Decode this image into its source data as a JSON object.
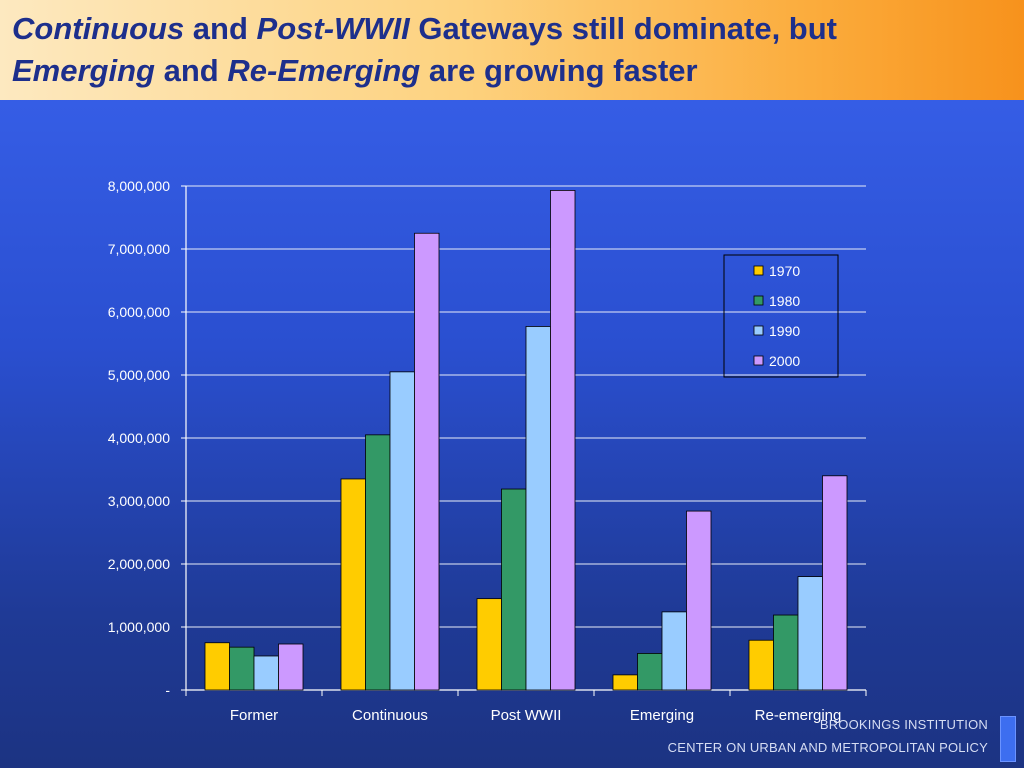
{
  "title": {
    "line1": [
      {
        "text": "Continuous",
        "italic": true
      },
      {
        "text": " and ",
        "italic": false
      },
      {
        "text": "Post-WWII",
        "italic": true
      },
      {
        "text": " Gateways still dominate, but",
        "italic": false
      }
    ],
    "line2": [
      {
        "text": "Emerging",
        "italic": true
      },
      {
        "text": " and ",
        "italic": false
      },
      {
        "text": "Re-Emerging",
        "italic": true
      },
      {
        "text": " are growing faster",
        "italic": false
      }
    ]
  },
  "footer": {
    "line1": "BROOKINGS INSTITUTION",
    "line2": "CENTER ON URBAN AND METROPOLITAN POLICY"
  },
  "chart_data": {
    "type": "bar",
    "categories": [
      "Former",
      "Continuous",
      "Post WWII",
      "Emerging",
      "Re-emerging"
    ],
    "series": [
      {
        "name": "1970",
        "color": "#ffcc00",
        "values": [
          750000,
          3350000,
          1450000,
          240000,
          790000
        ]
      },
      {
        "name": "1980",
        "color": "#339966",
        "values": [
          680000,
          4050000,
          3190000,
          580000,
          1190000
        ]
      },
      {
        "name": "1990",
        "color": "#99ccff",
        "values": [
          540000,
          5050000,
          5770000,
          1240000,
          1800000
        ]
      },
      {
        "name": "2000",
        "color": "#cc99ff",
        "values": [
          730000,
          7250000,
          7930000,
          2840000,
          3400000
        ]
      }
    ],
    "ylim": [
      0,
      8000000
    ],
    "yticks": [
      {
        "value": 0,
        "label": "-"
      },
      {
        "value": 1000000,
        "label": "1,000,000"
      },
      {
        "value": 2000000,
        "label": "2,000,000"
      },
      {
        "value": 3000000,
        "label": "3,000,000"
      },
      {
        "value": 4000000,
        "label": "4,000,000"
      },
      {
        "value": 5000000,
        "label": "5,000,000"
      },
      {
        "value": 6000000,
        "label": "6,000,000"
      },
      {
        "value": 7000000,
        "label": "7,000,000"
      },
      {
        "value": 8000000,
        "label": "8,000,000"
      }
    ],
    "grid": true,
    "legend": "top-right",
    "title": "",
    "xlabel": "",
    "ylabel": ""
  }
}
